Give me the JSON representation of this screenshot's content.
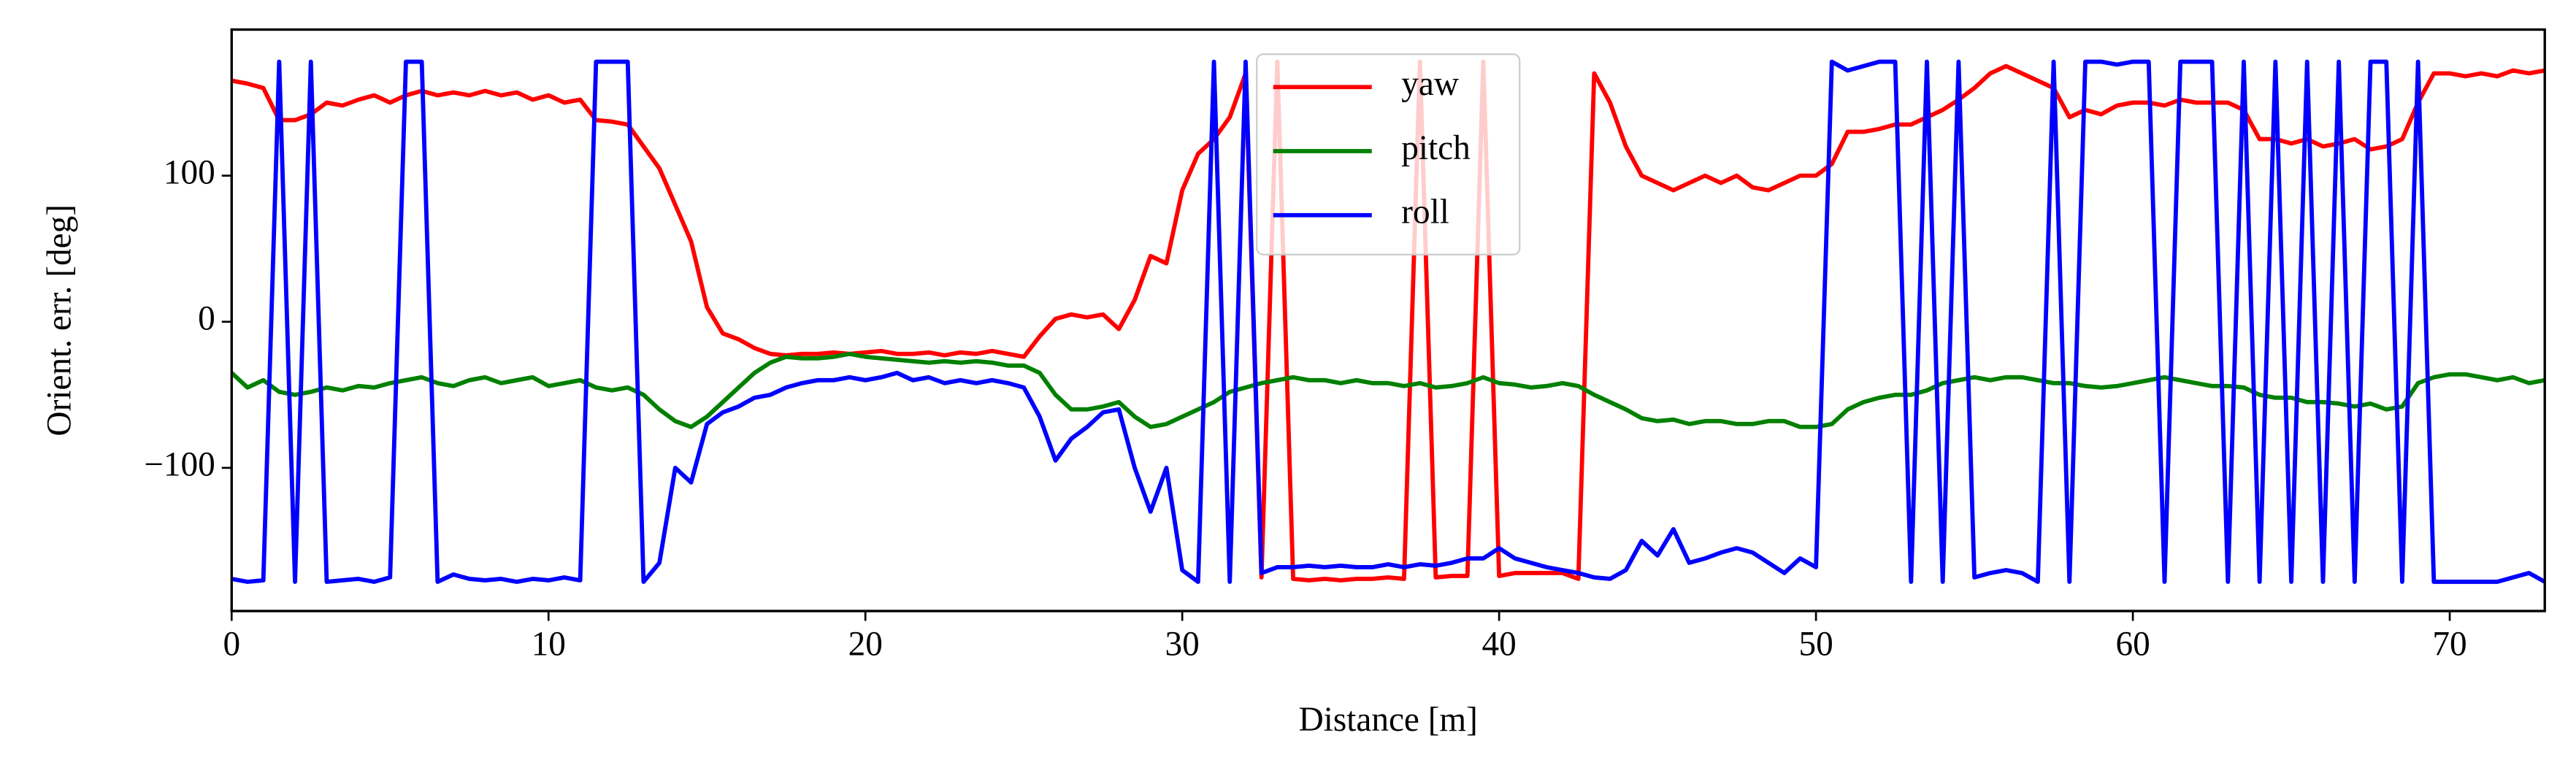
{
  "chart_data": {
    "type": "line",
    "xlabel": "Distance [m]",
    "ylabel": "Orient. err. [deg]",
    "x": [
      0,
      0.5,
      1,
      1.5,
      2,
      2.5,
      3,
      3.5,
      4,
      4.5,
      5,
      5.5,
      6,
      6.5,
      7,
      7.5,
      8,
      8.5,
      9,
      9.5,
      10,
      10.5,
      11,
      11.5,
      12,
      12.5,
      13,
      13.5,
      14,
      14.5,
      15,
      15.5,
      16,
      16.5,
      17,
      17.5,
      18,
      18.5,
      19,
      19.5,
      20,
      20.5,
      21,
      21.5,
      22,
      22.5,
      23,
      23.5,
      24,
      24.5,
      25,
      25.5,
      26,
      26.5,
      27,
      27.5,
      28,
      28.5,
      29,
      29.5,
      30,
      30.5,
      31,
      31.5,
      32,
      32.5,
      33,
      33.5,
      34,
      34.5,
      35,
      35.5,
      36,
      36.5,
      37,
      37.5,
      38,
      38.5,
      39,
      39.5,
      40,
      40.5,
      41,
      41.5,
      42,
      42.5,
      43,
      43.5,
      44,
      44.5,
      45,
      45.5,
      46,
      46.5,
      47,
      47.5,
      48,
      48.5,
      49,
      49.5,
      50,
      50.5,
      51,
      51.5,
      52,
      52.5,
      53,
      53.5,
      54,
      54.5,
      55,
      55.5,
      56,
      56.5,
      57,
      57.5,
      58,
      58.5,
      59,
      59.5,
      60,
      60.5,
      61,
      61.5,
      62,
      62.5,
      63,
      63.5,
      64,
      64.5,
      65,
      65.5,
      66,
      66.5,
      67,
      67.5,
      68,
      68.5,
      69,
      69.5,
      70,
      70.5,
      71,
      71.5,
      72,
      72.5,
      73
    ],
    "series": [
      {
        "name": "yaw",
        "color": "#ff0000",
        "values": [
          165,
          163,
          160,
          138,
          138,
          142,
          150,
          148,
          152,
          155,
          150,
          155,
          158,
          155,
          157,
          155,
          158,
          155,
          157,
          152,
          155,
          150,
          152,
          138,
          137,
          135,
          120,
          105,
          80,
          55,
          10,
          -8,
          -12,
          -18,
          -22,
          -23,
          -22,
          -22,
          -21,
          -22,
          -21,
          -20,
          -22,
          -22,
          -21,
          -23,
          -21,
          -22,
          -20,
          -22,
          -24,
          -10,
          2,
          5,
          3,
          5,
          -5,
          15,
          45,
          40,
          90,
          115,
          125,
          140,
          170,
          -175,
          178,
          -176,
          -177,
          -176,
          -177,
          -176,
          -176,
          -175,
          -176,
          178,
          -175,
          -174,
          -174,
          178,
          -174,
          -172,
          -172,
          -172,
          -172,
          -176,
          170,
          150,
          120,
          100,
          95,
          90,
          95,
          100,
          95,
          100,
          92,
          90,
          95,
          100,
          100,
          108,
          130,
          130,
          132,
          135,
          135,
          140,
          145,
          152,
          160,
          170,
          175,
          170,
          165,
          160,
          140,
          145,
          142,
          148,
          150,
          150,
          148,
          152,
          150,
          150,
          150,
          145,
          125,
          125,
          122,
          125,
          120,
          122,
          125,
          118,
          120,
          125,
          150,
          170,
          170,
          168,
          170,
          168,
          172,
          170,
          172
        ]
      },
      {
        "name": "pitch",
        "color": "#008000",
        "values": [
          -35,
          -45,
          -40,
          -48,
          -50,
          -48,
          -45,
          -47,
          -44,
          -45,
          -42,
          -40,
          -38,
          -42,
          -44,
          -40,
          -38,
          -42,
          -40,
          -38,
          -44,
          -42,
          -40,
          -45,
          -47,
          -45,
          -50,
          -60,
          -68,
          -72,
          -65,
          -55,
          -45,
          -35,
          -28,
          -24,
          -25,
          -25,
          -24,
          -22,
          -24,
          -25,
          -26,
          -27,
          -28,
          -27,
          -28,
          -27,
          -28,
          -30,
          -30,
          -35,
          -50,
          -60,
          -60,
          -58,
          -55,
          -65,
          -72,
          -70,
          -65,
          -60,
          -55,
          -48,
          -45,
          -42,
          -40,
          -38,
          -40,
          -40,
          -42,
          -40,
          -42,
          -42,
          -44,
          -42,
          -45,
          -44,
          -42,
          -38,
          -42,
          -43,
          -45,
          -44,
          -42,
          -44,
          -50,
          -55,
          -60,
          -66,
          -68,
          -67,
          -70,
          -68,
          -68,
          -70,
          -70,
          -68,
          -68,
          -72,
          -72,
          -70,
          -60,
          -55,
          -52,
          -50,
          -50,
          -47,
          -42,
          -40,
          -38,
          -40,
          -38,
          -38,
          -40,
          -42,
          -42,
          -44,
          -45,
          -44,
          -42,
          -40,
          -38,
          -40,
          -42,
          -44,
          -44,
          -45,
          -50,
          -52,
          -52,
          -55,
          -55,
          -56,
          -58,
          -56,
          -60,
          -58,
          -42,
          -38,
          -36,
          -36,
          -38,
          -40,
          -38,
          -42,
          -40
        ]
      },
      {
        "name": "roll",
        "color": "#0000ff",
        "values": [
          -176,
          -178,
          -177,
          178,
          -178,
          178,
          -178,
          -177,
          -176,
          -178,
          -175,
          178,
          178,
          -178,
          -173,
          -176,
          -177,
          -176,
          -178,
          -176,
          -177,
          -175,
          -177,
          178,
          178,
          178,
          -178,
          -165,
          -100,
          -110,
          -70,
          -62,
          -58,
          -52,
          -50,
          -45,
          -42,
          -40,
          -40,
          -38,
          -40,
          -38,
          -35,
          -40,
          -38,
          -42,
          -40,
          -42,
          -40,
          -42,
          -45,
          -65,
          -95,
          -80,
          -72,
          -62,
          -60,
          -100,
          -130,
          -100,
          -170,
          -178,
          178,
          -178,
          178,
          -172,
          -168,
          -168,
          -167,
          -168,
          -167,
          -168,
          -168,
          -166,
          -168,
          -166,
          -167,
          -165,
          -162,
          -162,
          -155,
          -162,
          -165,
          -168,
          -170,
          -172,
          -175,
          -176,
          -170,
          -150,
          -160,
          -142,
          -165,
          -162,
          -158,
          -155,
          -158,
          -165,
          -172,
          -162,
          -168,
          178,
          172,
          175,
          178,
          178,
          -178,
          178,
          -178,
          178,
          -175,
          -172,
          -170,
          -172,
          -178,
          178,
          -178,
          178,
          178,
          176,
          178,
          178,
          -178,
          178,
          178,
          178,
          -178,
          178,
          -178,
          178,
          -178,
          178,
          -178,
          178,
          -178,
          178,
          178,
          -178,
          178,
          -178,
          -178,
          -178,
          -178,
          -178,
          -175,
          -172,
          -178
        ]
      }
    ],
    "xlim": [
      0,
      73
    ],
    "ylim": [
      -198,
      200
    ],
    "xticks": [
      0,
      10,
      20,
      30,
      40,
      50,
      60,
      70
    ],
    "yticks": [
      {
        "value": -100,
        "label": "−100"
      },
      0,
      100
    ],
    "legend": "upper center",
    "grid": false
  }
}
